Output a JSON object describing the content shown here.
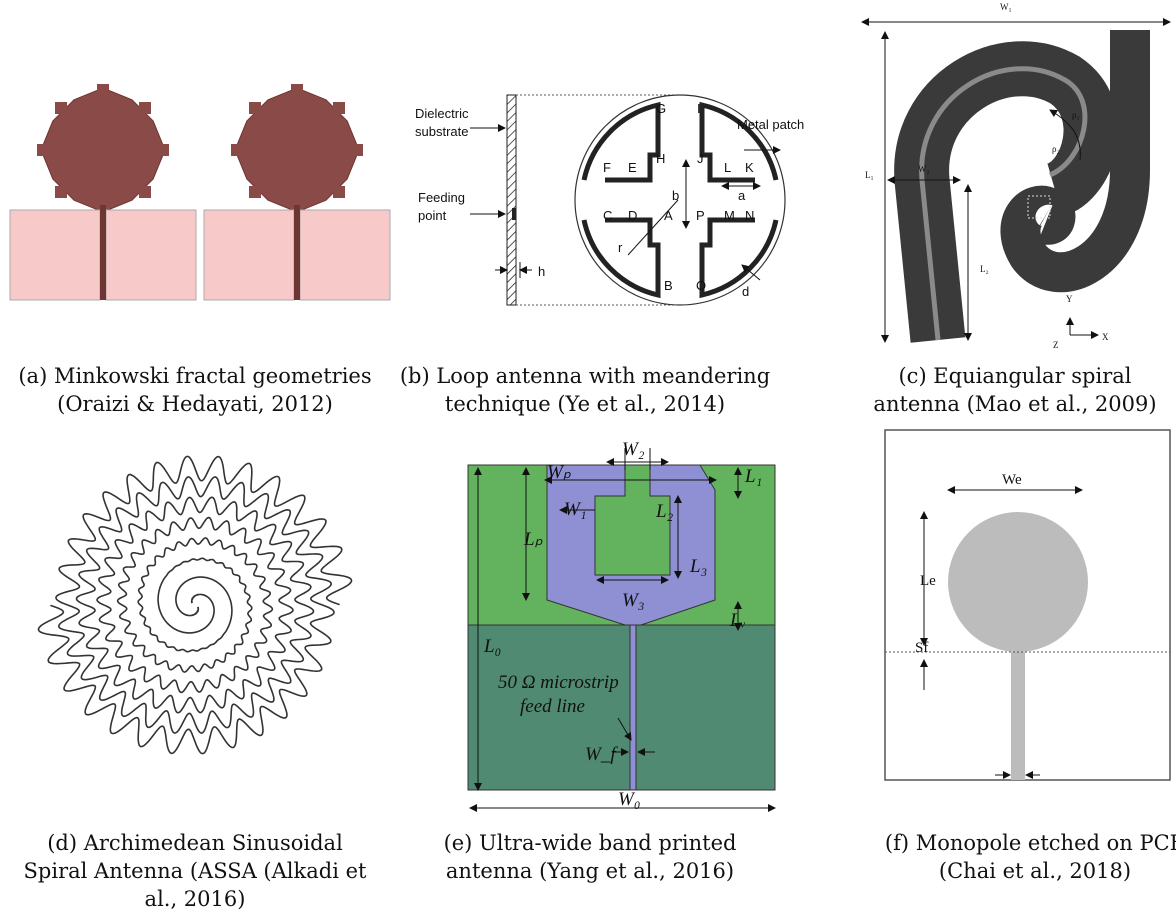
{
  "panels": [
    {
      "caption": [
        "(a) Minkowski fractal geometries",
        "(Oraizi & Hedayati, 2012)"
      ]
    },
    {
      "caption": [
        "(b) Loop antenna with meandering",
        "technique (Ye et al., 2014)"
      ],
      "labels": [
        "Dielectric",
        "substrate",
        "Feeding",
        "point",
        "Metal patch",
        "G",
        "I",
        "H",
        "J",
        "F",
        "E",
        "C",
        "D",
        "A",
        "B",
        "P",
        "O",
        "L",
        "K",
        "M",
        "N",
        "a",
        "b",
        "r",
        "d",
        "h"
      ]
    },
    {
      "caption": [
        "(c) Equiangular spiral",
        "antenna (Mao et al., 2009)"
      ],
      "labels": [
        "W₁",
        "L₁",
        "W₂",
        "L₂",
        "ρ₁",
        "ρ₂",
        "Y",
        "X",
        "Z"
      ]
    },
    {
      "caption": [
        "(d) Archimedean Sinusoidal",
        "Spiral Antenna (ASSA (Alkadi et",
        "al., 2016)"
      ]
    },
    {
      "caption": [
        "(e) Ultra-wide band printed",
        "antenna (Yang et al., 2016)"
      ],
      "labels": [
        "W₂",
        "Wₚ",
        "W₁",
        "L₂",
        "L₁",
        "Lₚ",
        "L₃",
        "W₃",
        "Lᵥ",
        "L₀",
        "50 Ω microstrip",
        "feed line",
        "W_f",
        "W₀"
      ]
    },
    {
      "caption": [
        "(f) Monopole etched on PCB",
        "(Chai et al., 2018)"
      ],
      "labels": [
        "We",
        "Le",
        "Sf"
      ]
    }
  ]
}
